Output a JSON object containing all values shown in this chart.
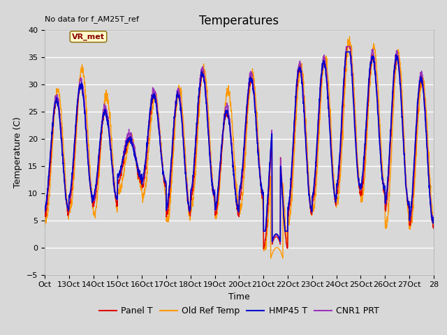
{
  "title": "Temperatures",
  "xlabel": "Time",
  "ylabel": "Temperature (C)",
  "ylim": [
    -5,
    40
  ],
  "xlim": [
    0,
    16
  ],
  "background_color": "#d8d8d8",
  "plot_bg_color": "#d8d8d8",
  "grid_color": "white",
  "annotation_text": "No data for f_AM25T_ref",
  "legend_box_text": "VR_met",
  "xtick_labels": [
    "Oct",
    "13Oct",
    "14Oct",
    "15Oct",
    "16Oct",
    "17Oct",
    "18Oct",
    "19Oct",
    "20Oct",
    "21Oct",
    "22Oct",
    "23Oct",
    "24Oct",
    "25Oct",
    "26Oct",
    "27Oct",
    "28"
  ],
  "xtick_positions": [
    0,
    1,
    2,
    3,
    4,
    5,
    6,
    7,
    8,
    9,
    10,
    11,
    12,
    13,
    14,
    15,
    16
  ],
  "series": [
    {
      "name": "Panel T",
      "color": "#dd0000",
      "linewidth": 1.0
    },
    {
      "name": "Old Ref Temp",
      "color": "#ff9900",
      "linewidth": 1.0
    },
    {
      "name": "HMP45 T",
      "color": "#0000cc",
      "linewidth": 1.2
    },
    {
      "name": "CNR1 PRT",
      "color": "#9933bb",
      "linewidth": 1.0
    }
  ],
  "ytick_values": [
    -5,
    0,
    5,
    10,
    15,
    20,
    25,
    30,
    35,
    40
  ],
  "title_fontsize": 12,
  "axis_label_fontsize": 9,
  "tick_fontsize": 8,
  "legend_fontsize": 9
}
